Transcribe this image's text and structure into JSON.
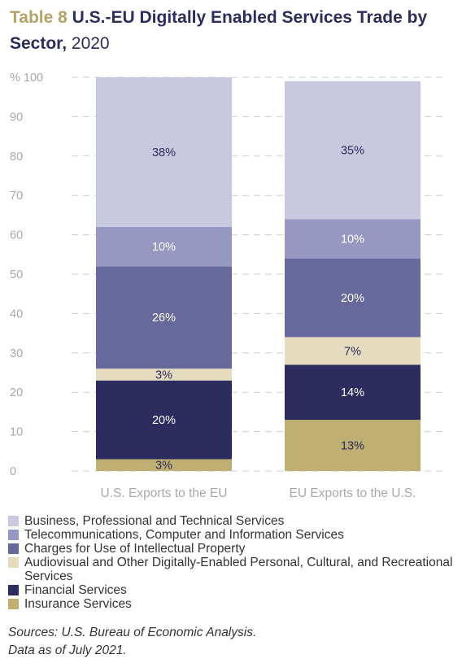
{
  "title": {
    "number": "Table 8",
    "main": "U.S.-EU Digitally Enabled Services Trade by Sector,",
    "year": "2020"
  },
  "chart_data": {
    "type": "bar",
    "stacked": true,
    "categories": [
      "U.S. Exports to the EU",
      "EU Exports to the U.S."
    ],
    "y_unit": "%",
    "ylim": [
      0,
      100
    ],
    "yticks": [
      0,
      10,
      20,
      30,
      40,
      50,
      60,
      70,
      80,
      90,
      100
    ],
    "grid": "dashed",
    "legend_position": "bottom",
    "series": [
      {
        "name": "Insurance Services",
        "color": "#bfaf72",
        "label_color": "#2c2d5b",
        "values": [
          3,
          13
        ],
        "labels": [
          "3%",
          "13%"
        ]
      },
      {
        "name": "Financial Services",
        "color": "#2c2d5e",
        "label_color": "#ffffff",
        "values": [
          20,
          14
        ],
        "labels": [
          "20%",
          "14%"
        ]
      },
      {
        "name": "Audiovisual and Other Digitally-Enabled Personal, Cultural, and Recreational Services",
        "color": "#e5dcc0",
        "label_color": "#2c2d5b",
        "values": [
          3,
          7
        ],
        "labels": [
          "3%",
          "7%"
        ]
      },
      {
        "name": "Charges for Use of Intellectual Property",
        "color": "#67699c",
        "label_color": "#ffffff",
        "values": [
          26,
          20
        ],
        "labels": [
          "26%",
          "20%"
        ]
      },
      {
        "name": "Telecommunications, Computer and Information Services",
        "color": "#9798c2",
        "label_color": "#ffffff",
        "values": [
          10,
          10
        ],
        "labels": [
          "10%",
          "10%"
        ]
      },
      {
        "name": "Business, Professional and Technical Services",
        "color": "#c8c8df",
        "label_color": "#2c2d5b",
        "values": [
          38,
          35
        ],
        "labels": [
          "38%",
          "35%"
        ]
      }
    ]
  },
  "legend_order": [
    "Business, Professional and Technical Services",
    "Telecommunications, Computer and Information Services",
    "Charges for Use of Intellectual Property",
    "Audiovisual and Other Digitally-Enabled Personal, Cultural, and Recreational Services",
    "Financial Services",
    "Insurance Services"
  ],
  "sources": [
    "Sources: U.S. Bureau of Economic Analysis.",
    "Data as of July 2021."
  ]
}
